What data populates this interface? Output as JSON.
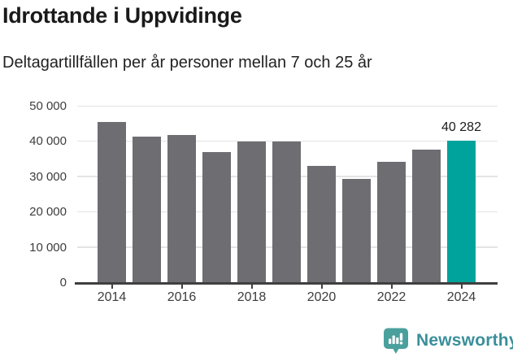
{
  "header": {
    "title": "Idrottande i Uppvidinge",
    "subtitle": "Deltagartillfällen per år personer mellan 7 och 25 år"
  },
  "chart_data": {
    "type": "bar",
    "title": "Idrottande i Uppvidinge",
    "subtitle": "Deltagartillfällen per år personer mellan 7 och 25 år",
    "categories": [
      "2014",
      "2015",
      "2016",
      "2017",
      "2018",
      "2019",
      "2020",
      "2021",
      "2022",
      "2023",
      "2024"
    ],
    "values": [
      45700,
      41500,
      41900,
      37100,
      40200,
      40200,
      33200,
      29400,
      34300,
      37800,
      40282
    ],
    "highlight_index": 10,
    "highlight_label": "40 282",
    "y_ticks": [
      {
        "value": 0,
        "label": "0"
      },
      {
        "value": 10000,
        "label": "10 000"
      },
      {
        "value": 20000,
        "label": "20 000"
      },
      {
        "value": 30000,
        "label": "30 000"
      },
      {
        "value": 40000,
        "label": "40 000"
      },
      {
        "value": 50000,
        "label": "50 000"
      }
    ],
    "x_tick_labels": [
      "2014",
      "2016",
      "2018",
      "2020",
      "2022",
      "2024"
    ],
    "x_tick_indices": [
      0,
      2,
      4,
      6,
      8,
      10
    ],
    "ylim": [
      0,
      50000
    ],
    "grid": true,
    "legend_position": "none",
    "colors": {
      "bar": "#6e6d72",
      "highlight": "#00a39b",
      "gridline": "#e4e4e4",
      "axis": "#3f3f3f",
      "tick_text": "#3d3d3d"
    }
  },
  "footer": {
    "brand": "Newsworthy",
    "logo_icon": "newsworthy-chart-bubble-icon",
    "icon_color": "#4aa09d",
    "text_color": "#3a8f9a"
  }
}
